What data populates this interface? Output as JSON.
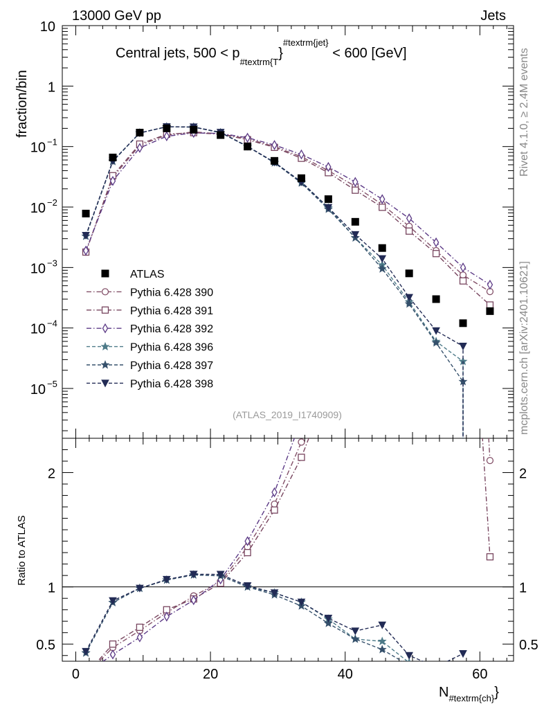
{
  "header": {
    "beam": "13000 GeV pp",
    "process": "Jets",
    "rivet": "Rivet 4.1.0, ≥ 2.4M events",
    "site": "mcplots.cern.ch [arXiv:2401.10621]",
    "analysis_id": "(ATLAS_2019_I1740909)"
  },
  "title_parts": {
    "pre": "Central jets, 500 < p",
    "sub": "#textrm{T",
    "sup": "#textrm{jet",
    "post": "< 600 [GeV]"
  },
  "axes": {
    "y_main_label": "fraction/bin",
    "y_ratio_label": "Ratio to ATLAS",
    "x_label_main": "N",
    "x_label_sub": "#textrm{ch}",
    "x_ticks": [
      "0",
      "20",
      "40",
      "60"
    ],
    "y_main_ticks": [
      "10",
      "1",
      "10",
      "10",
      "10",
      "10",
      "10"
    ],
    "y_main_exponents": [
      "",
      "",
      "−1",
      "−2",
      "−3",
      "−4",
      "−5"
    ],
    "y_ratio_ticks": [
      "2",
      "1",
      "0.5"
    ]
  },
  "legend": [
    {
      "label": "ATLAS"
    },
    {
      "label": "Pythia 6.428 390"
    },
    {
      "label": "Pythia 6.428 391"
    },
    {
      "label": "Pythia 6.428 392"
    },
    {
      "label": "Pythia 6.428 396"
    },
    {
      "label": "Pythia 6.428 397"
    },
    {
      "label": "Pythia 6.428 398"
    }
  ],
  "chart_data": {
    "type": "scatter",
    "title": "Central jets, 500 < pT jet < 600 [GeV]",
    "xlabel": "N_ch",
    "ylabel": "fraction/bin",
    "ratio_ylabel": "Ratio to ATLAS",
    "xlim": [
      -2,
      65
    ],
    "ylim": [
      1.5e-06,
      10
    ],
    "yscale": "log",
    "ratio_ylim": [
      0.35,
      2.3
    ],
    "x": [
      1.5,
      5.5,
      9.5,
      13.5,
      17.5,
      21.5,
      25.5,
      29.5,
      33.5,
      37.5,
      41.5,
      45.5,
      49.5,
      53.5,
      57.5,
      61.5
    ],
    "data": {
      "name": "ATLAS",
      "values": [
        0.0078,
        0.066,
        0.17,
        0.2,
        0.19,
        0.155,
        0.1,
        0.058,
        0.03,
        0.0135,
        0.0057,
        0.0021,
        0.0008,
        0.0003,
        0.00012,
        0.00019
      ]
    },
    "series": [
      {
        "name": "Pythia 6.428 390",
        "color": "#835068",
        "marker": "circle",
        "dash": "dashdot",
        "values": [
          0.0018,
          0.031,
          0.105,
          0.155,
          0.175,
          0.162,
          0.135,
          0.1,
          0.068,
          0.04,
          0.022,
          0.011,
          0.0048,
          0.0019,
          0.00075,
          0.0004
        ]
      },
      {
        "name": "Pythia 6.428 391",
        "color": "#77445e",
        "marker": "square",
        "dash": "dashdot",
        "values": [
          0.0018,
          0.033,
          0.11,
          0.16,
          0.17,
          0.16,
          0.13,
          0.097,
          0.064,
          0.037,
          0.019,
          0.0099,
          0.004,
          0.0017,
          0.0006,
          0.00024
        ]
      },
      {
        "name": "Pythia 6.428 392",
        "color": "#5c3a86",
        "marker": "diamond",
        "dash": "dashdot",
        "values": [
          0.0019,
          0.027,
          0.095,
          0.148,
          0.168,
          0.165,
          0.14,
          0.106,
          0.074,
          0.046,
          0.026,
          0.0135,
          0.0065,
          0.0026,
          0.001,
          0.00052
        ]
      },
      {
        "name": "Pythia 6.428 396",
        "color": "#4d7a88",
        "marker": "star",
        "dash": "dash",
        "values": [
          0.0033,
          0.057,
          0.168,
          0.212,
          0.21,
          0.17,
          0.1,
          0.055,
          0.026,
          0.0097,
          0.0031,
          0.0011,
          0.00027,
          6e-05,
          2.8e-05,
          0.0
        ]
      },
      {
        "name": "Pythia 6.428 397",
        "color": "#35506b",
        "marker": "star",
        "dash": "dash",
        "values": [
          0.0033,
          0.057,
          0.168,
          0.212,
          0.21,
          0.17,
          0.1,
          0.054,
          0.025,
          0.0092,
          0.0031,
          0.00095,
          0.00025,
          5.7e-05,
          1.3e-05,
          0.0
        ]
      },
      {
        "name": "Pythia 6.428 398",
        "color": "#222b55",
        "marker": "triangle-down",
        "dash": "dash",
        "values": [
          0.0034,
          0.058,
          0.168,
          0.213,
          0.211,
          0.172,
          0.101,
          0.055,
          0.026,
          0.0098,
          0.0035,
          0.0014,
          0.00032,
          9e-05,
          5e-05,
          0.0
        ]
      }
    ]
  }
}
